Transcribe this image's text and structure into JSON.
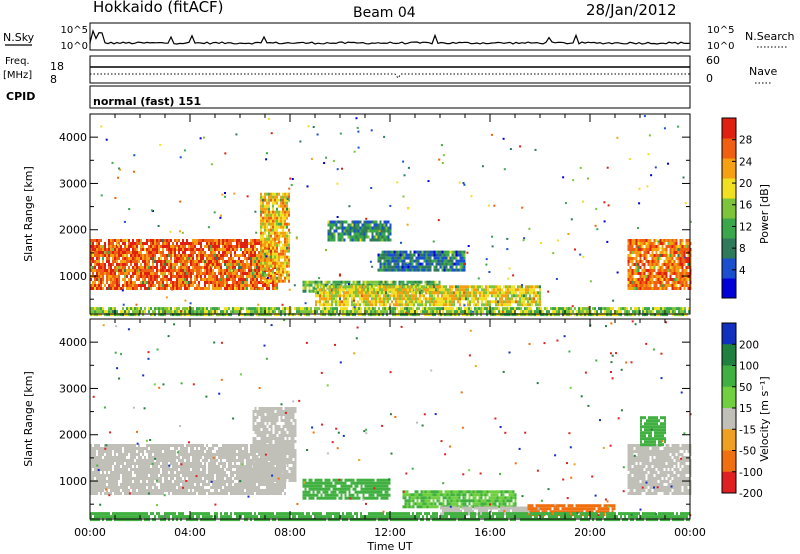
{
  "header": {
    "station": "Hokkaido (fitACF)",
    "beam": "Beam 04",
    "date": "28/Jan/2012"
  },
  "top_panels": {
    "nsky_label": "N.Sky",
    "nsky_ticks": [
      "10^5",
      "10^0"
    ],
    "nsearch_label": "N.Search",
    "nsearch_ticks": [
      "10^5",
      "10^0"
    ],
    "freq_label": "Freq.",
    "freq_unit": "[MHz]",
    "freq_ticks": [
      "18",
      "8"
    ],
    "nave_label": "Nave",
    "nave_ticks": [
      "60",
      "0"
    ],
    "cpid_label": "CPID",
    "cpid_value": "normal (fast) 151"
  },
  "chart_data": [
    {
      "type": "heatmap",
      "panel": "power",
      "ylabel": "Slant Range [km]",
      "yticks": [
        "4000",
        "3000",
        "2000",
        "1000"
      ],
      "ylim": [
        180,
        4500
      ],
      "xlim_hours": [
        0,
        24
      ],
      "colorbar_label": "Power [dB]",
      "colorbar_ticks": [
        "28",
        "24",
        "20",
        "16",
        "12",
        "8",
        "4"
      ],
      "colorbar_colors": [
        "#0000d8",
        "#1a4fd0",
        "#2f7a5a",
        "#3aa84a",
        "#7cc43a",
        "#f0e020",
        "#f5a010",
        "#f06010",
        "#e02010"
      ],
      "regions": [
        {
          "t": [
            0.0,
            7.5
          ],
          "r": [
            750,
            1800
          ],
          "value": 27
        },
        {
          "t": [
            6.8,
            8.0
          ],
          "r": [
            900,
            2800
          ],
          "value": 22
        },
        {
          "t": [
            8.5,
            14.0
          ],
          "r": [
            650,
            900
          ],
          "value": 14
        },
        {
          "t": [
            9.0,
            18.0
          ],
          "r": [
            400,
            800
          ],
          "value": 20
        },
        {
          "t": [
            9.5,
            12.0
          ],
          "r": [
            1800,
            2200
          ],
          "value": 10
        },
        {
          "t": [
            11.5,
            15.0
          ],
          "r": [
            1100,
            1550
          ],
          "value": 8
        },
        {
          "t": [
            21.5,
            24.0
          ],
          "r": [
            700,
            1800
          ],
          "value": 26
        },
        {
          "t": [
            0.0,
            24.0
          ],
          "r": [
            200,
            330
          ],
          "value": 16
        }
      ]
    },
    {
      "type": "heatmap",
      "panel": "velocity",
      "ylabel": "Slant Range [km]",
      "yticks": [
        "4000",
        "3000",
        "2000",
        "1000"
      ],
      "ylim": [
        180,
        4500
      ],
      "xlim_hours": [
        0,
        24
      ],
      "xticks": [
        "00:00",
        "04:00",
        "08:00",
        "12:00",
        "16:00",
        "20:00",
        "00:00"
      ],
      "xlabel": "Time UT",
      "colorbar_label": "Velocity [m s⁻¹]",
      "colorbar_ticks": [
        "200",
        "100",
        "50",
        "15",
        "-15",
        "-50",
        "-100",
        "-200"
      ],
      "colorbar_colors": [
        "#1030c0",
        "#208040",
        "#40b040",
        "#70d040",
        "#c0c0b8",
        "#f0a020",
        "#f07010",
        "#e02020"
      ],
      "regions": [
        {
          "t": [
            0.0,
            7.8
          ],
          "r": [
            750,
            1800
          ],
          "value": 0
        },
        {
          "t": [
            6.5,
            8.2
          ],
          "r": [
            1000,
            2600
          ],
          "value": 0
        },
        {
          "t": [
            8.5,
            12.0
          ],
          "r": [
            650,
            1050
          ],
          "value": 60
        },
        {
          "t": [
            12.5,
            17.0
          ],
          "r": [
            450,
            800
          ],
          "value": 30
        },
        {
          "t": [
            14.0,
            18.0
          ],
          "r": [
            300,
            450
          ],
          "value": 0
        },
        {
          "t": [
            17.5,
            21.0
          ],
          "r": [
            300,
            500
          ],
          "value": -60
        },
        {
          "t": [
            21.5,
            24.0
          ],
          "r": [
            700,
            1800
          ],
          "value": 0
        },
        {
          "t": [
            22.0,
            23.0
          ],
          "r": [
            1800,
            2400
          ],
          "value": 40
        },
        {
          "t": [
            0.0,
            24.0
          ],
          "r": [
            200,
            330
          ],
          "value": 40
        }
      ]
    }
  ]
}
